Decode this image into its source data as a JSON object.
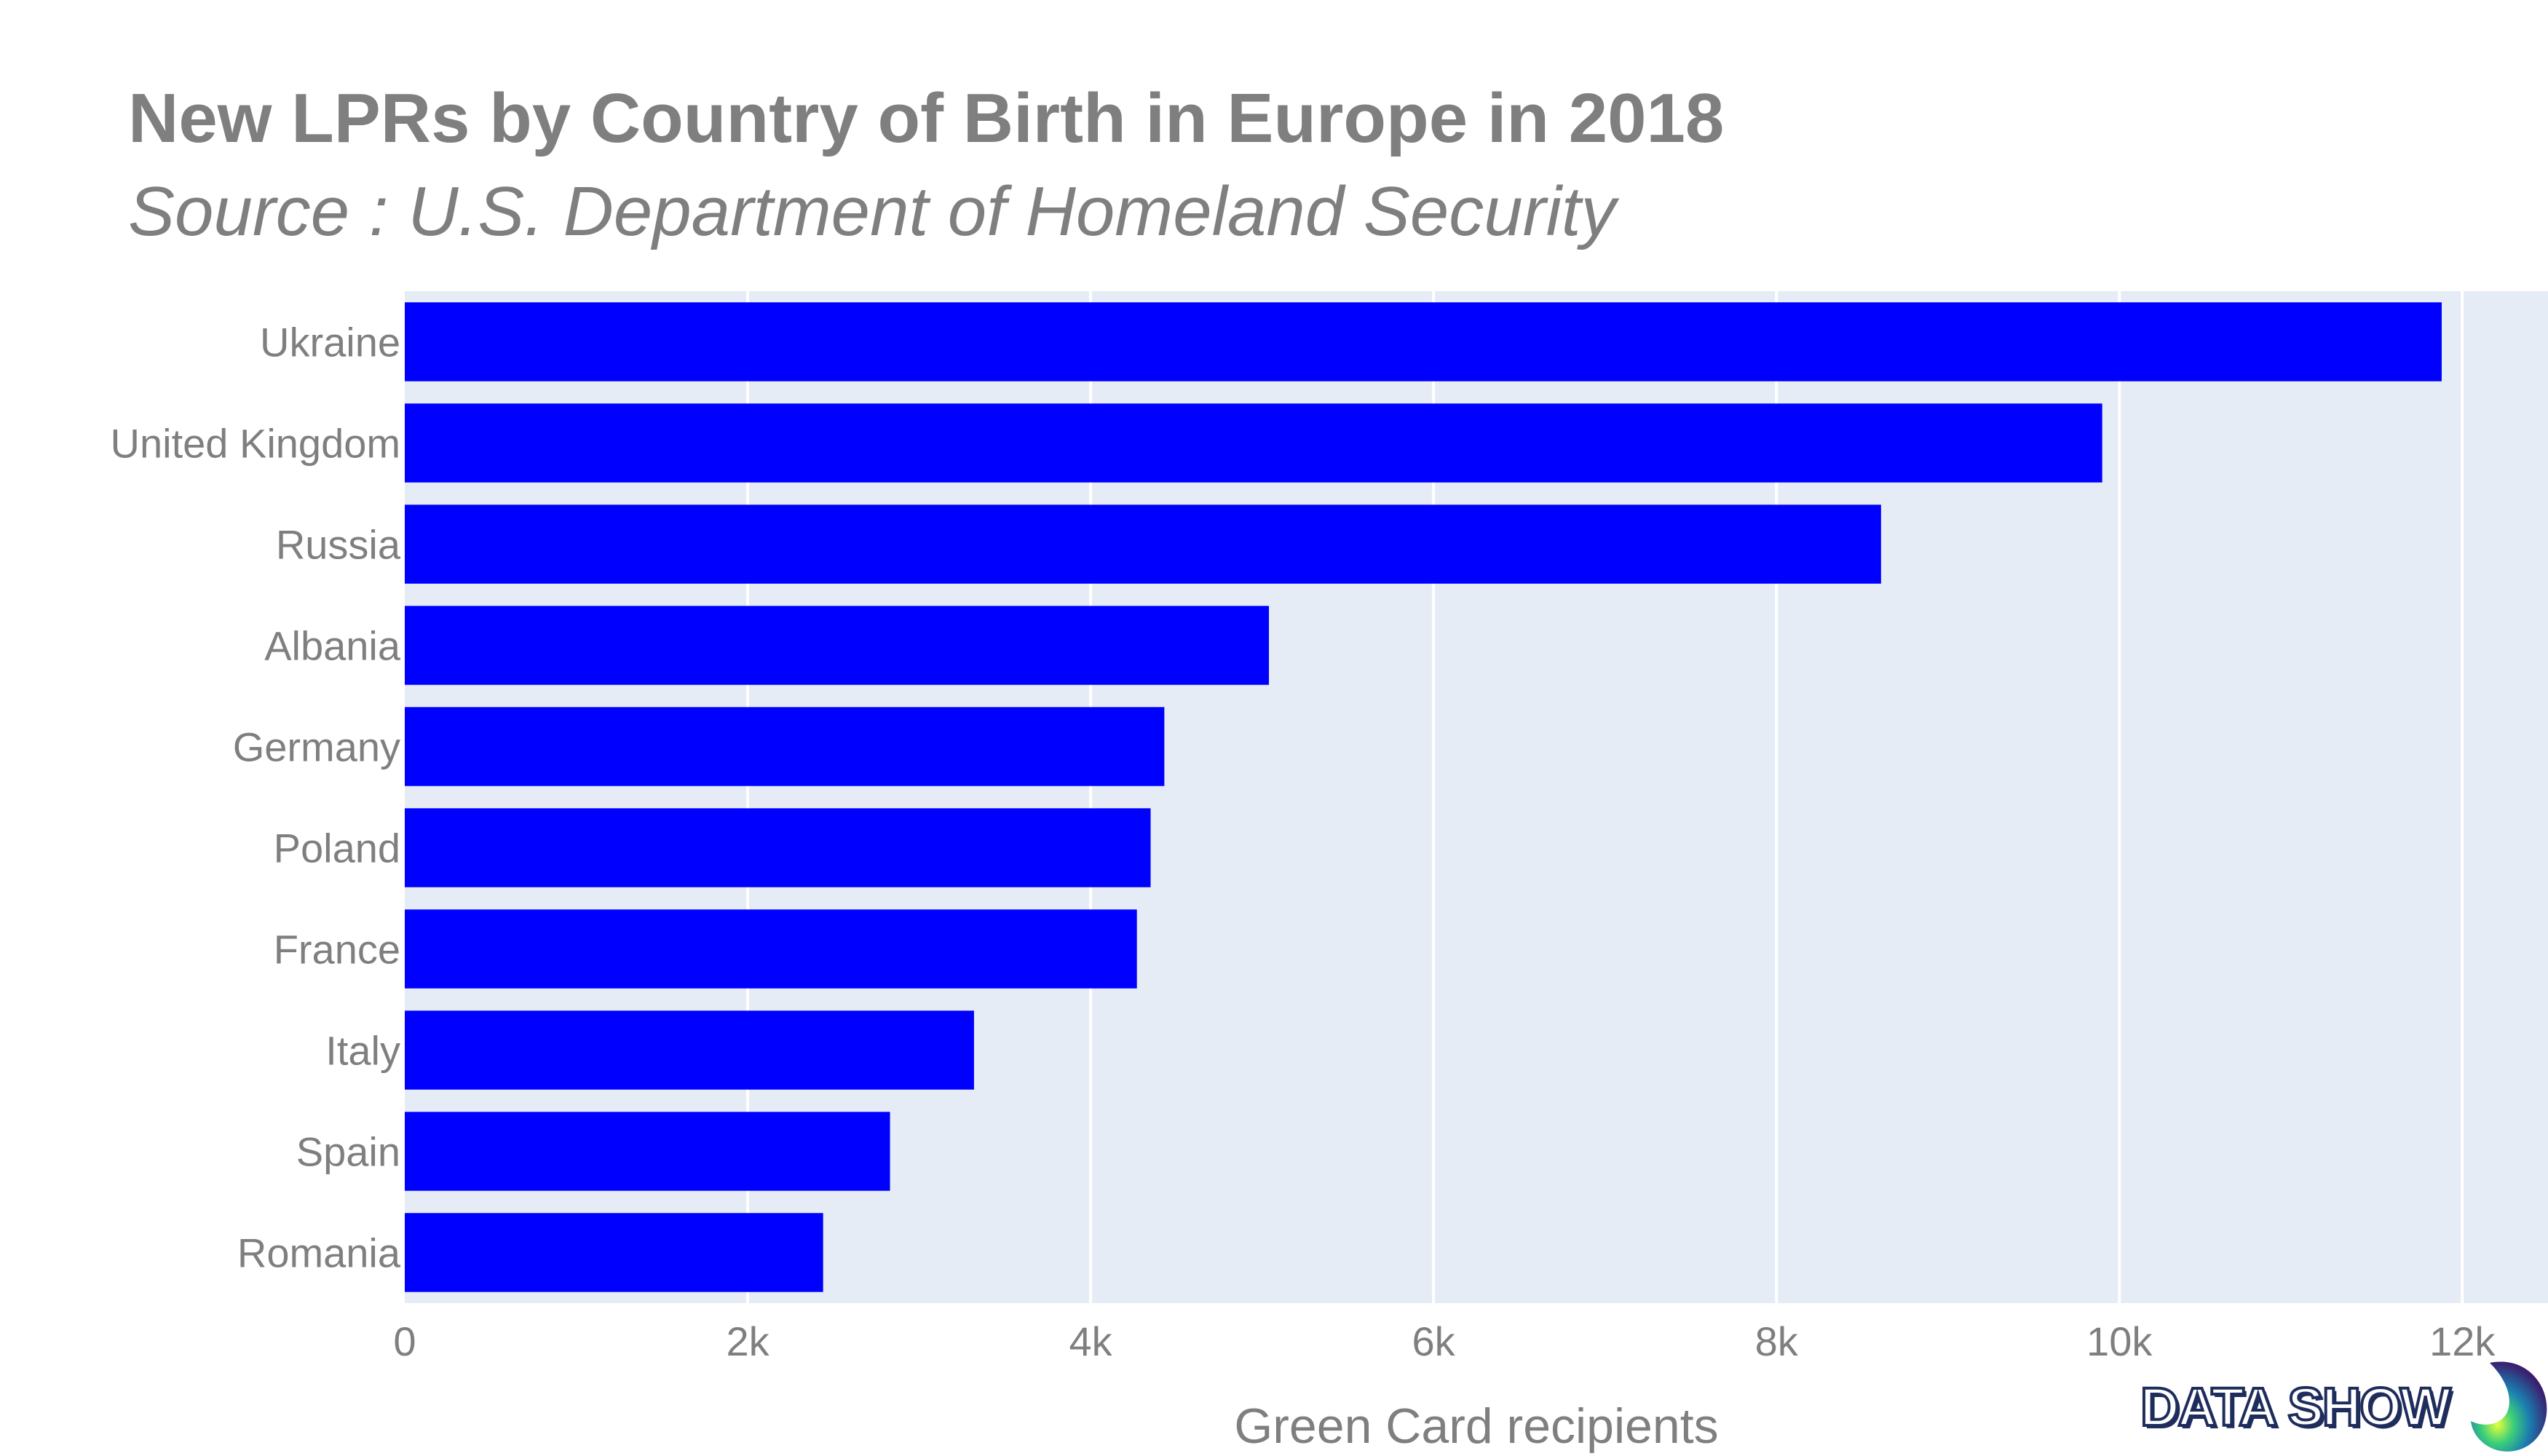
{
  "title": "New LPRs by Country of Birth in Europe in 2018",
  "subtitle": "Source : U.S. Department of Homeland Security",
  "logo_text": "DATA SHOW",
  "colors": {
    "bar": "#0000ff",
    "plot_bg": "#e5ecf6",
    "grid": "#ffffff",
    "text": "#7f7f7f"
  },
  "chart_data": {
    "type": "bar",
    "orientation": "horizontal",
    "categories": [
      "Ukraine",
      "United Kingdom",
      "Russia",
      "Albania",
      "Germany",
      "Poland",
      "France",
      "Italy",
      "Spain",
      "Romania"
    ],
    "values": [
      11880,
      9900,
      8610,
      5040,
      4430,
      4350,
      4270,
      3320,
      2830,
      2440
    ],
    "xlabel": "Green Card recipients",
    "ylabel": "",
    "xlim": [
      0,
      12500
    ],
    "xticks": [
      0,
      2000,
      4000,
      6000,
      8000,
      10000,
      12000
    ],
    "xtick_labels": [
      "0",
      "2k",
      "4k",
      "6k",
      "8k",
      "10k",
      "12k"
    ],
    "grid": true,
    "legend": "none"
  }
}
